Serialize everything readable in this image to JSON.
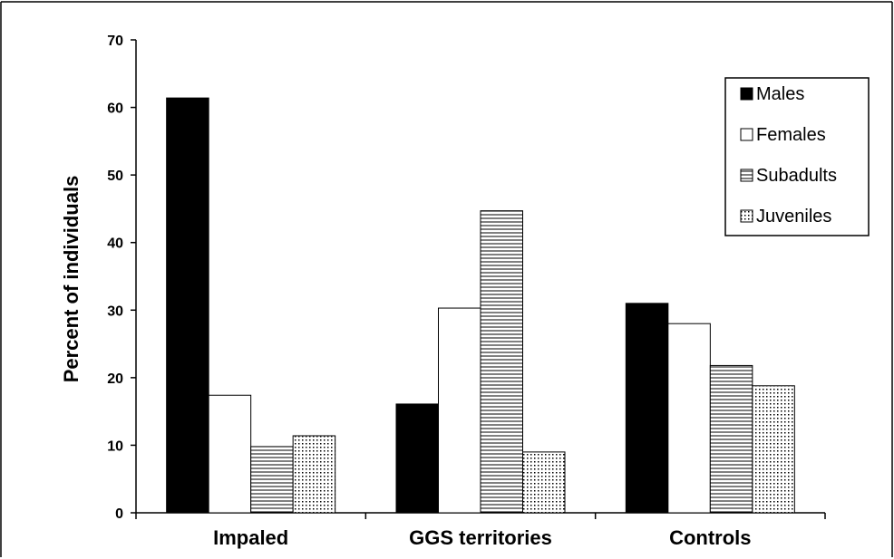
{
  "chart_data": {
    "type": "bar",
    "title": "",
    "xlabel": "",
    "ylabel": "Percent of individuals",
    "ylim": [
      0,
      70
    ],
    "yticks": [
      0,
      10,
      20,
      30,
      40,
      50,
      60,
      70
    ],
    "grid": false,
    "legend_position": "top-right",
    "categories": [
      "Impaled",
      "GGS territories",
      "Controls"
    ],
    "series": [
      {
        "name": "Males",
        "values": [
          61.4,
          16.1,
          31.0
        ],
        "fill": "solid-black"
      },
      {
        "name": "Females",
        "values": [
          17.4,
          30.3,
          28.0
        ],
        "fill": "white"
      },
      {
        "name": "Subadults",
        "values": [
          9.8,
          44.7,
          21.8
        ],
        "fill": "horizontal-lines"
      },
      {
        "name": "Juveniles",
        "values": [
          11.4,
          9.0,
          18.8
        ],
        "fill": "dots"
      }
    ]
  },
  "colors": {
    "axis": "#000000",
    "bar_outline": "#000000",
    "males": "#000000",
    "females": "#ffffff"
  }
}
